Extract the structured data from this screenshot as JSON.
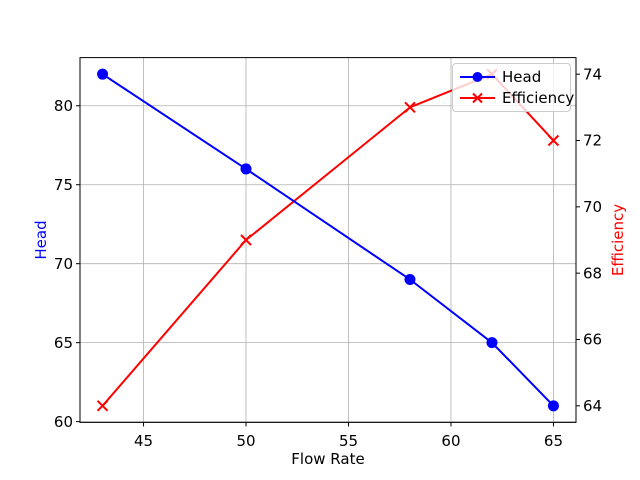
{
  "chart_data": {
    "type": "line",
    "title": "",
    "xlabel": "Flow Rate",
    "ylabel_left": "Head",
    "ylabel_right": "Efficiency",
    "x": [
      43,
      50,
      58,
      62,
      65
    ],
    "series": [
      {
        "name": "Head",
        "axis": "left",
        "color": "#0000ff",
        "marker": "circle",
        "values": [
          82,
          76,
          69,
          65,
          61
        ]
      },
      {
        "name": "Efficiency",
        "axis": "right",
        "color": "#ff0000",
        "marker": "x",
        "values": [
          64,
          69,
          73,
          74,
          72
        ]
      }
    ],
    "xlim": [
      41.9,
      66.1
    ],
    "ylim_left": [
      59.95,
      83.05
    ],
    "ylim_right": [
      63.5,
      74.5
    ],
    "xticks": [
      45,
      50,
      55,
      60,
      65
    ],
    "yticks_left": [
      60,
      65,
      70,
      75,
      80
    ],
    "yticks_right": [
      64,
      66,
      68,
      70,
      72,
      74
    ],
    "grid": true,
    "legend": {
      "position": "upper-right",
      "entries": [
        "Head",
        "Efficiency"
      ]
    }
  },
  "colors": {
    "head": "#0000ff",
    "efficiency": "#ff0000",
    "grid": "#b0b0b0",
    "spine": "#000000",
    "tick": "#000000",
    "tick_label": "#000000",
    "legend_edge": "#cccccc",
    "background": "#ffffff"
  }
}
